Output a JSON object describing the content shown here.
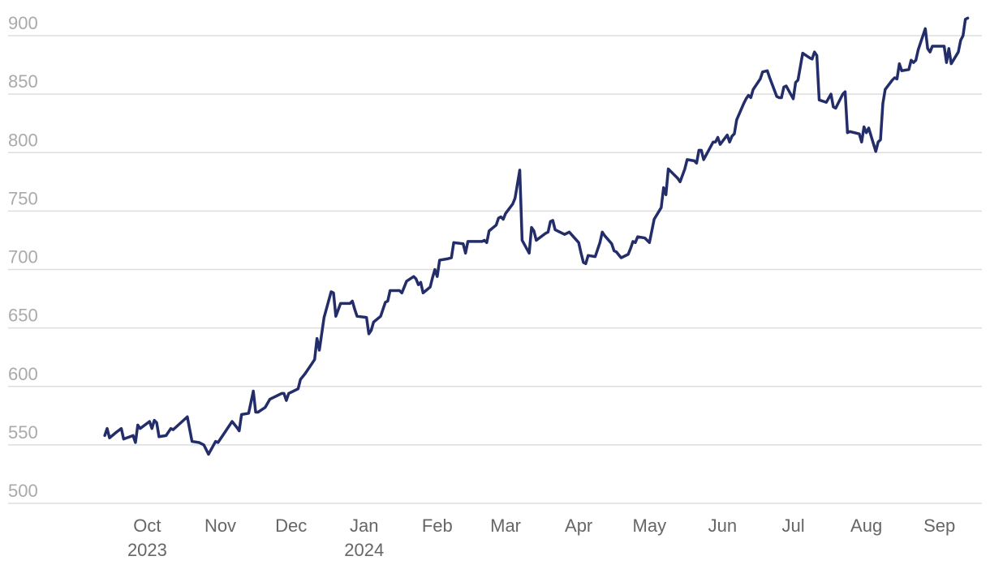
{
  "chart_data": {
    "type": "line",
    "color": "#232d69",
    "grid": true,
    "ylim": [
      500,
      920
    ],
    "yticks": [
      500,
      550,
      600,
      650,
      700,
      750,
      800,
      850,
      900
    ],
    "xlim": [
      "2023-08-03",
      "2024-09-19"
    ],
    "xticks": [
      {
        "value": "2023-10",
        "label": [
          "Oct",
          "2023"
        ]
      },
      {
        "value": "2023-11",
        "label": [
          "Nov"
        ]
      },
      {
        "value": "2023-12",
        "label": [
          "Dec"
        ]
      },
      {
        "value": "2024-01",
        "label": [
          "Jan",
          "2024"
        ]
      },
      {
        "value": "2024-02",
        "label": [
          "Feb"
        ]
      },
      {
        "value": "2024-03",
        "label": [
          "Mar"
        ]
      },
      {
        "value": "2024-04",
        "label": [
          "Apr"
        ]
      },
      {
        "value": "2024-05",
        "label": [
          "May"
        ]
      },
      {
        "value": "2024-06",
        "label": [
          "Jun"
        ]
      },
      {
        "value": "2024-07",
        "label": [
          "Jul"
        ]
      },
      {
        "value": "2024-08",
        "label": [
          "Aug"
        ]
      },
      {
        "value": "2024-09",
        "label": [
          "Sep"
        ]
      }
    ],
    "x": [
      "2023-09-13",
      "2023-09-14",
      "2023-09-15",
      "2023-09-18",
      "2023-09-20",
      "2023-09-21",
      "2023-09-25",
      "2023-09-26",
      "2023-09-27",
      "2023-09-28",
      "2023-10-02",
      "2023-10-03",
      "2023-10-04",
      "2023-10-05",
      "2023-10-06",
      "2023-10-09",
      "2023-10-11",
      "2023-10-12",
      "2023-10-18",
      "2023-10-20",
      "2023-10-23",
      "2023-10-25",
      "2023-10-27",
      "2023-10-30",
      "2023-10-31",
      "2023-11-02",
      "2023-11-06",
      "2023-11-08",
      "2023-11-09",
      "2023-11-10",
      "2023-11-13",
      "2023-11-15",
      "2023-11-16",
      "2023-11-17",
      "2023-11-20",
      "2023-11-22",
      "2023-11-27",
      "2023-11-28",
      "2023-11-29",
      "2023-11-30",
      "2023-12-04",
      "2023-12-05",
      "2023-12-07",
      "2023-12-11",
      "2023-12-12",
      "2023-12-13",
      "2023-12-15",
      "2023-12-18",
      "2023-12-19",
      "2023-12-20",
      "2023-12-22",
      "2023-12-26",
      "2023-12-27",
      "2023-12-28",
      "2023-12-29",
      "2024-01-02",
      "2024-01-03",
      "2024-01-04",
      "2024-01-05",
      "2024-01-08",
      "2024-01-10",
      "2024-01-11",
      "2024-01-12",
      "2024-01-16",
      "2024-01-17",
      "2024-01-19",
      "2024-01-22",
      "2024-01-23",
      "2024-01-24",
      "2024-01-25",
      "2024-01-26",
      "2024-01-29",
      "2024-01-30",
      "2024-01-31",
      "2024-02-01",
      "2024-02-02",
      "2024-02-05",
      "2024-02-07",
      "2024-02-08",
      "2024-02-12",
      "2024-02-13",
      "2024-02-14",
      "2024-02-16",
      "2024-02-20",
      "2024-02-21",
      "2024-02-22",
      "2024-02-23",
      "2024-02-26",
      "2024-02-27",
      "2024-02-28",
      "2024-02-29",
      "2024-03-01",
      "2024-03-04",
      "2024-03-05",
      "2024-03-07",
      "2024-03-08",
      "2024-03-11",
      "2024-03-12",
      "2024-03-13",
      "2024-03-14",
      "2024-03-18",
      "2024-03-19",
      "2024-03-20",
      "2024-03-21",
      "2024-03-22",
      "2024-03-26",
      "2024-03-28",
      "2024-04-01",
      "2024-04-02",
      "2024-04-03",
      "2024-04-04",
      "2024-04-05",
      "2024-04-08",
      "2024-04-10",
      "2024-04-11",
      "2024-04-12",
      "2024-04-15",
      "2024-04-16",
      "2024-04-17",
      "2024-04-19",
      "2024-04-22",
      "2024-04-23",
      "2024-04-24",
      "2024-04-25",
      "2024-04-26",
      "2024-04-29",
      "2024-05-01",
      "2024-05-03",
      "2024-05-06",
      "2024-05-07",
      "2024-05-08",
      "2024-05-09",
      "2024-05-13",
      "2024-05-14",
      "2024-05-16",
      "2024-05-17",
      "2024-05-20",
      "2024-05-21",
      "2024-05-22",
      "2024-05-23",
      "2024-05-24",
      "2024-05-28",
      "2024-05-29",
      "2024-05-30",
      "2024-05-31",
      "2024-06-03",
      "2024-06-04",
      "2024-06-05",
      "2024-06-06",
      "2024-06-07",
      "2024-06-10",
      "2024-06-11",
      "2024-06-12",
      "2024-06-13",
      "2024-06-14",
      "2024-06-17",
      "2024-06-18",
      "2024-06-20",
      "2024-06-21",
      "2024-06-24",
      "2024-06-25",
      "2024-06-26",
      "2024-06-27",
      "2024-06-28",
      "2024-07-01",
      "2024-07-02",
      "2024-07-03",
      "2024-07-05",
      "2024-07-08",
      "2024-07-09",
      "2024-07-10",
      "2024-07-11",
      "2024-07-12",
      "2024-07-15",
      "2024-07-17",
      "2024-07-18",
      "2024-07-19",
      "2024-07-22",
      "2024-07-23",
      "2024-07-24",
      "2024-07-25",
      "2024-07-29",
      "2024-07-30",
      "2024-07-31",
      "2024-08-01",
      "2024-08-02",
      "2024-08-05",
      "2024-08-06",
      "2024-08-07",
      "2024-08-08",
      "2024-08-09",
      "2024-08-12",
      "2024-08-13",
      "2024-08-14",
      "2024-08-15",
      "2024-08-16",
      "2024-08-19",
      "2024-08-20",
      "2024-08-21",
      "2024-08-22",
      "2024-08-23",
      "2024-08-26",
      "2024-08-27",
      "2024-08-28",
      "2024-08-29",
      "2024-08-30",
      "2024-09-03",
      "2024-09-04",
      "2024-09-05",
      "2024-09-06",
      "2024-09-09",
      "2024-09-10",
      "2024-09-11",
      "2024-09-12",
      "2024-09-13"
    ],
    "values": [
      558,
      564,
      556,
      561,
      564,
      555,
      558,
      552,
      567,
      564,
      570,
      564,
      571,
      569,
      557,
      558,
      564,
      563,
      574,
      553,
      552,
      550,
      542,
      553,
      552,
      558,
      570,
      565,
      562,
      576,
      577,
      596,
      578,
      578,
      582,
      589,
      594,
      594,
      588,
      594,
      598,
      606,
      611,
      623,
      641,
      631,
      659,
      681,
      680,
      660,
      671,
      671,
      673,
      666,
      660,
      659,
      645,
      648,
      655,
      660,
      672,
      673,
      682,
      682,
      680,
      690,
      694,
      692,
      687,
      689,
      680,
      685,
      693,
      700,
      694,
      708,
      709,
      710,
      723,
      722,
      714,
      724,
      724,
      724,
      725,
      723,
      733,
      738,
      744,
      745,
      743,
      748,
      756,
      761,
      785,
      725,
      714,
      736,
      733,
      725,
      731,
      732,
      741,
      742,
      734,
      730,
      732,
      723,
      714,
      706,
      705,
      712,
      711,
      723,
      732,
      729,
      722,
      716,
      715,
      710,
      713,
      718,
      724,
      723,
      728,
      727,
      723,
      743,
      753,
      770,
      764,
      786,
      778,
      775,
      786,
      794,
      793,
      791,
      802,
      802,
      794,
      809,
      809,
      813,
      807,
      815,
      809,
      814,
      816,
      828,
      842,
      846,
      849,
      847,
      854,
      863,
      869,
      870,
      864,
      848,
      847,
      847,
      856,
      857,
      846,
      860,
      862,
      885,
      881,
      880,
      886,
      883,
      845,
      843,
      850,
      839,
      838,
      850,
      852,
      817,
      818,
      816,
      809,
      822,
      817,
      821,
      801,
      809,
      811,
      842,
      854,
      862,
      864,
      863,
      876,
      870,
      871,
      879,
      877,
      879,
      888,
      906,
      889,
      886,
      891,
      891,
      891,
      877,
      889,
      876,
      886,
      896,
      900,
      914,
      915
    ]
  }
}
